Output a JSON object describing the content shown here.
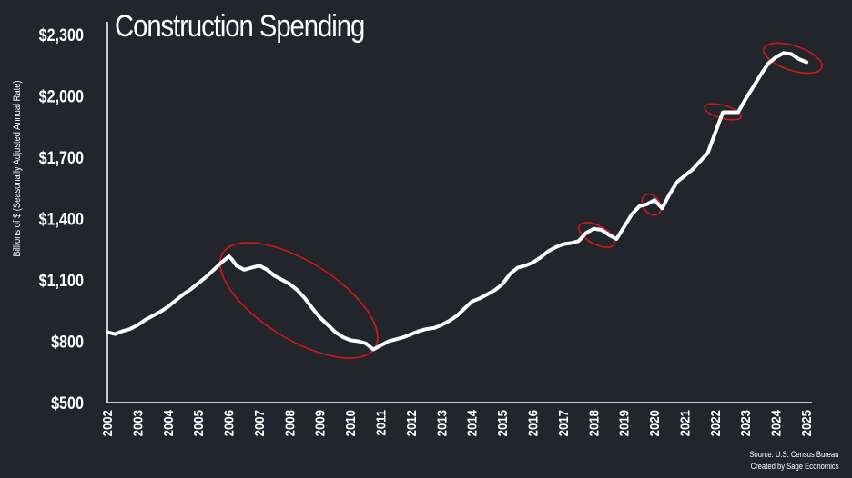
{
  "chart_data": {
    "type": "line",
    "title": "Construction Spending",
    "ylabel": "Billions of $ (Seasonally Adjusted Annual Rate)",
    "xlabel": "",
    "ylim": [
      500,
      2300
    ],
    "y_ticks": [
      500,
      800,
      1100,
      1400,
      1700,
      2000,
      2300
    ],
    "y_tick_labels": [
      "$500",
      "$800",
      "$1,100",
      "$1,400",
      "$1,700",
      "$2,000",
      "$2,300"
    ],
    "x_ticks": [
      "2002",
      "2003",
      "2004",
      "2005",
      "2006",
      "2007",
      "2008",
      "2009",
      "2010",
      "2011",
      "2012",
      "2013",
      "2014",
      "2015",
      "2016",
      "2017",
      "2018",
      "2019",
      "2020",
      "2021",
      "2022",
      "2023",
      "2024",
      "2025"
    ],
    "xlim": [
      2002,
      2025
    ],
    "grid": false,
    "legend": "none",
    "line_color": "#ffffff",
    "highlight_color": "#d01818",
    "series": [
      {
        "x": [
          2002.0,
          2002.25,
          2002.5,
          2002.75,
          2003.0,
          2003.25,
          2003.5,
          2003.75,
          2004.0,
          2004.25,
          2004.5,
          2004.75,
          2005.0,
          2005.25,
          2005.5,
          2005.75,
          2006.0,
          2006.1,
          2006.25,
          2006.5,
          2006.75,
          2007.0,
          2007.25,
          2007.5,
          2007.75,
          2008.0,
          2008.25,
          2008.5,
          2008.75,
          2009.0,
          2009.25,
          2009.5,
          2009.75,
          2010.0,
          2010.25,
          2010.5,
          2010.75,
          2011.0,
          2011.25,
          2011.5,
          2011.75,
          2012.0,
          2012.25,
          2012.5,
          2012.75,
          2013.0,
          2013.25,
          2013.5,
          2013.75,
          2014.0,
          2014.25,
          2014.5,
          2014.75,
          2015.0,
          2015.25,
          2015.5,
          2015.75,
          2016.0,
          2016.25,
          2016.5,
          2016.75,
          2017.0,
          2017.25,
          2017.5,
          2017.75,
          2018.0,
          2018.25,
          2018.5,
          2018.75,
          2019.0,
          2019.25,
          2019.5,
          2019.75,
          2020.0,
          2020.25,
          2020.5,
          2020.75,
          2021.0,
          2021.25,
          2021.5,
          2021.75,
          2022.0,
          2022.25,
          2022.5,
          2022.75,
          2023.0,
          2023.25,
          2023.5,
          2023.75,
          2024.0,
          2024.25,
          2024.5,
          2024.75,
          2025.0
        ],
        "values": [
          845,
          835,
          850,
          860,
          880,
          905,
          925,
          945,
          970,
          1000,
          1030,
          1055,
          1085,
          1115,
          1150,
          1185,
          1215,
          1200,
          1170,
          1150,
          1160,
          1170,
          1150,
          1120,
          1100,
          1080,
          1050,
          1010,
          960,
          915,
          880,
          845,
          820,
          805,
          800,
          790,
          760,
          780,
          800,
          810,
          820,
          835,
          850,
          860,
          865,
          880,
          900,
          925,
          960,
          995,
          1010,
          1030,
          1050,
          1080,
          1130,
          1160,
          1170,
          1185,
          1210,
          1240,
          1260,
          1275,
          1280,
          1290,
          1330,
          1350,
          1345,
          1320,
          1300,
          1360,
          1420,
          1460,
          1470,
          1490,
          1450,
          1520,
          1580,
          1610,
          1640,
          1680,
          1720,
          1820,
          1920,
          1920,
          1920,
          1985,
          2045,
          2105,
          2160,
          2190,
          2210,
          2205,
          2180,
          2165
        ]
      }
    ],
    "highlight_ellipses": [
      {
        "label": "2006-2011 decline",
        "cx": 2008.3,
        "cy": 1000,
        "rx_years": 2.95,
        "ry_dollars": 190,
        "rotation_deg": 32
      },
      {
        "label": "2018 dip",
        "cx": 2018.1,
        "cy": 1320,
        "rx_years": 0.65,
        "ry_dollars": 45,
        "rotation_deg": 28
      },
      {
        "label": "2020 dip",
        "cx": 2019.9,
        "cy": 1468,
        "rx_years": 0.38,
        "ry_dollars": 40,
        "rotation_deg": 55
      },
      {
        "label": "2022 plateau",
        "cx": 2022.25,
        "cy": 1922,
        "rx_years": 0.62,
        "ry_dollars": 32,
        "rotation_deg": 15
      },
      {
        "label": "2024 decline",
        "cx": 2024.55,
        "cy": 2185,
        "rx_years": 1.0,
        "ry_dollars": 60,
        "rotation_deg": 18
      }
    ]
  },
  "source_line1": "Source: U.S. Census Bureau",
  "source_line2": "Created by Sage Economics"
}
